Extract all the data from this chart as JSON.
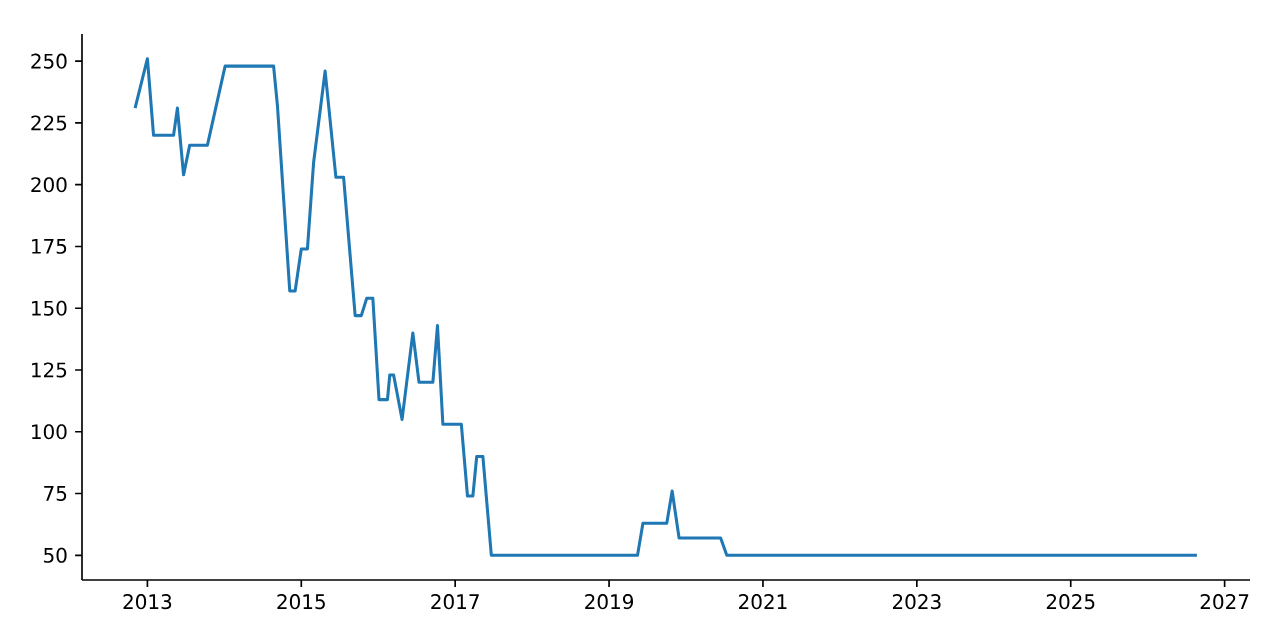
{
  "chart_data": {
    "type": "line",
    "x": [
      2012.84,
      2013.0,
      2013.08,
      2013.34,
      2013.39,
      2013.47,
      2013.55,
      2013.78,
      2014.01,
      2014.64,
      2014.69,
      2014.85,
      2014.92,
      2015.0,
      2015.08,
      2015.16,
      2015.31,
      2015.45,
      2015.55,
      2015.7,
      2015.78,
      2015.85,
      2015.93,
      2016.01,
      2016.12,
      2016.15,
      2016.2,
      2016.31,
      2016.45,
      2016.53,
      2016.71,
      2016.77,
      2016.84,
      2017.08,
      2017.16,
      2017.23,
      2017.28,
      2017.36,
      2017.47,
      2019.37,
      2019.44,
      2019.75,
      2019.82,
      2019.91,
      2020.45,
      2020.53,
      2026.64
    ],
    "series": [
      {
        "color": "#1f77b4",
        "values": [
          231,
          251,
          220,
          220,
          231,
          204,
          216,
          216,
          248,
          248,
          232,
          157,
          157,
          174,
          174,
          209,
          246,
          203,
          203,
          147,
          147,
          154,
          154,
          113,
          113,
          123,
          123,
          105,
          140,
          120,
          120,
          143,
          103,
          103,
          74,
          74,
          90,
          90,
          50,
          50,
          63,
          63,
          76,
          57,
          57,
          50,
          50
        ]
      }
    ],
    "xlim": [
      2012.15,
      2027.33
    ],
    "ylim": [
      40,
      261
    ],
    "xticks": [
      2013,
      2015,
      2017,
      2019,
      2021,
      2023,
      2025,
      2027
    ],
    "yticks": [
      50,
      75,
      100,
      125,
      150,
      175,
      200,
      225,
      250
    ],
    "grid": false,
    "marker": "none",
    "line_style": "solid"
  }
}
